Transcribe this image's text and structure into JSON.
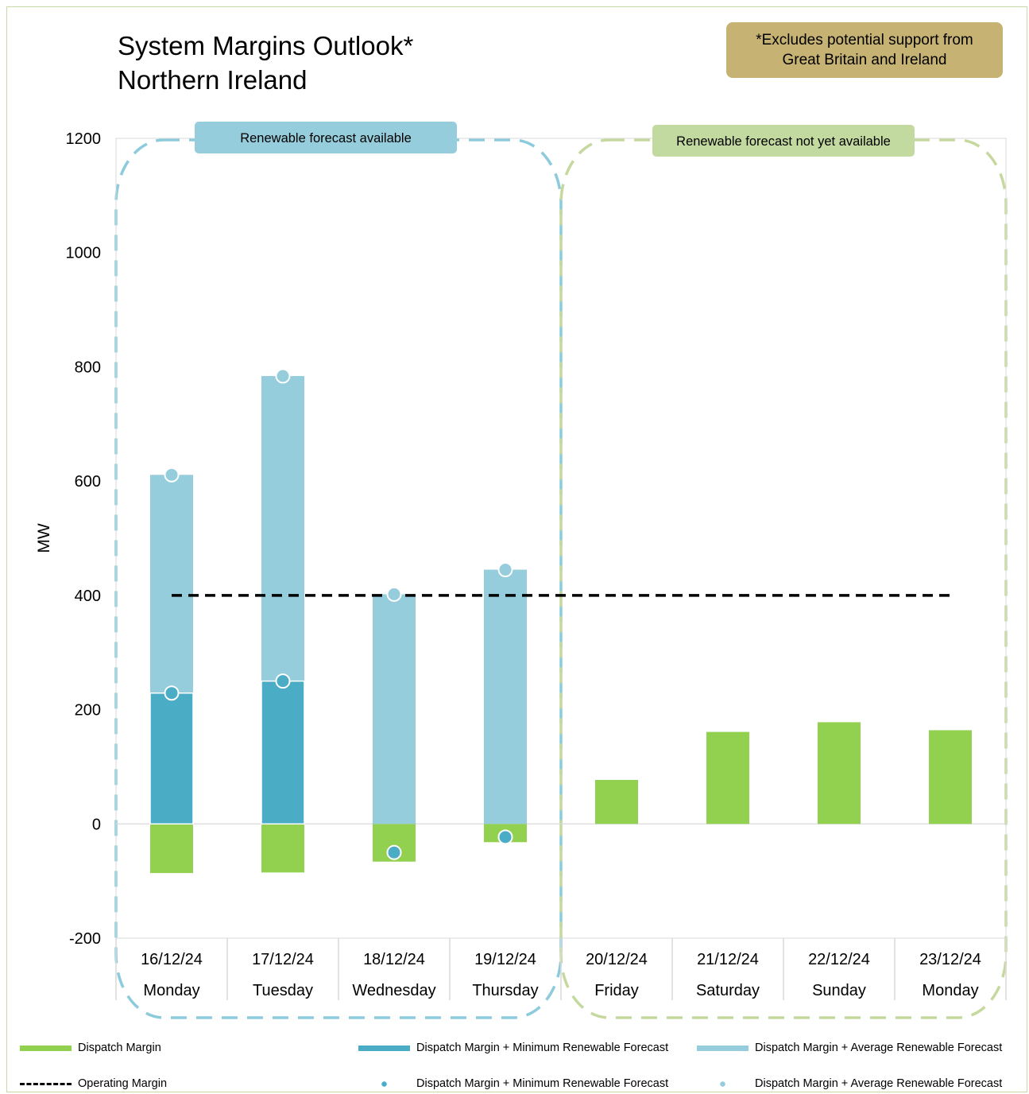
{
  "title": {
    "line1": "System Margins Outlook*",
    "line2": "Northern Ireland"
  },
  "note": {
    "line1": "*Excludes potential support from",
    "line2": "Great Britain and Ireland"
  },
  "regions": [
    {
      "label": "Renewable forecast available",
      "color": "#96cddd",
      "border_color": "#8ccbdc",
      "days": 4
    },
    {
      "label": "Renewable forecast not yet available",
      "color": "#c2d9a0",
      "border_color": "#c5d99e",
      "days": 4
    }
  ],
  "colors": {
    "dispatch_margin": "#92d050",
    "min_renewable": "#4bacc6",
    "avg_renewable": "#96cddd",
    "operating_margin": "#000000",
    "frame": "#c7d9a6",
    "gridline": "#d9d9d9"
  },
  "chart_data": {
    "type": "bar",
    "ylabel": "MW",
    "ylim": [
      -200,
      1200
    ],
    "yticks": [
      -200,
      0,
      200,
      400,
      600,
      800,
      1000,
      1200
    ],
    "categories": [
      "16/12/24",
      "17/12/24",
      "18/12/24",
      "19/12/24",
      "20/12/24",
      "21/12/24",
      "22/12/24",
      "23/12/24"
    ],
    "category_days": [
      "Monday",
      "Tuesday",
      "Wednesday",
      "Thursday",
      "Friday",
      "Saturday",
      "Sunday",
      "Monday"
    ],
    "series": [
      {
        "name": "Dispatch Margin",
        "kind": "bar",
        "values": [
          -86,
          -85,
          -66,
          -32,
          77,
          161,
          178,
          164
        ]
      },
      {
        "name": "Dispatch Margin + Minimum Renewable Forecast",
        "kind": "bar",
        "values": [
          229,
          250,
          -50,
          -23,
          null,
          null,
          null,
          null
        ]
      },
      {
        "name": "Dispatch Margin + Average Renewable Forecast",
        "kind": "bar",
        "values": [
          611,
          784,
          402,
          445,
          null,
          null,
          null,
          null
        ]
      },
      {
        "name": "Operating Margin",
        "kind": "line",
        "values": [
          400,
          400,
          400,
          400,
          400,
          400,
          400,
          400
        ]
      },
      {
        "name": "Dispatch Margin + Minimum Renewable Forecast",
        "kind": "marker",
        "values": [
          229,
          250,
          -50,
          -23,
          null,
          null,
          null,
          null
        ]
      },
      {
        "name": "Dispatch Margin + Average Renewable Forecast",
        "kind": "marker",
        "values": [
          611,
          784,
          402,
          445,
          null,
          null,
          null,
          null
        ]
      }
    ]
  },
  "legend": [
    {
      "label": "Dispatch Margin",
      "type": "bar",
      "color": "#92d050"
    },
    {
      "label": "Dispatch Margin + Minimum Renewable Forecast",
      "type": "bar",
      "color": "#4bacc6"
    },
    {
      "label": "Dispatch Margin + Average Renewable Forecast",
      "type": "bar",
      "color": "#96cddd"
    },
    {
      "label": "Operating Margin",
      "type": "dashed-line",
      "color": "#000000"
    },
    {
      "label": "Dispatch Margin + Minimum Renewable Forecast",
      "type": "marker",
      "color": "#4bacc6"
    },
    {
      "label": "Dispatch Margin + Average Renewable Forecast",
      "type": "marker",
      "color": "#96cddd"
    }
  ]
}
